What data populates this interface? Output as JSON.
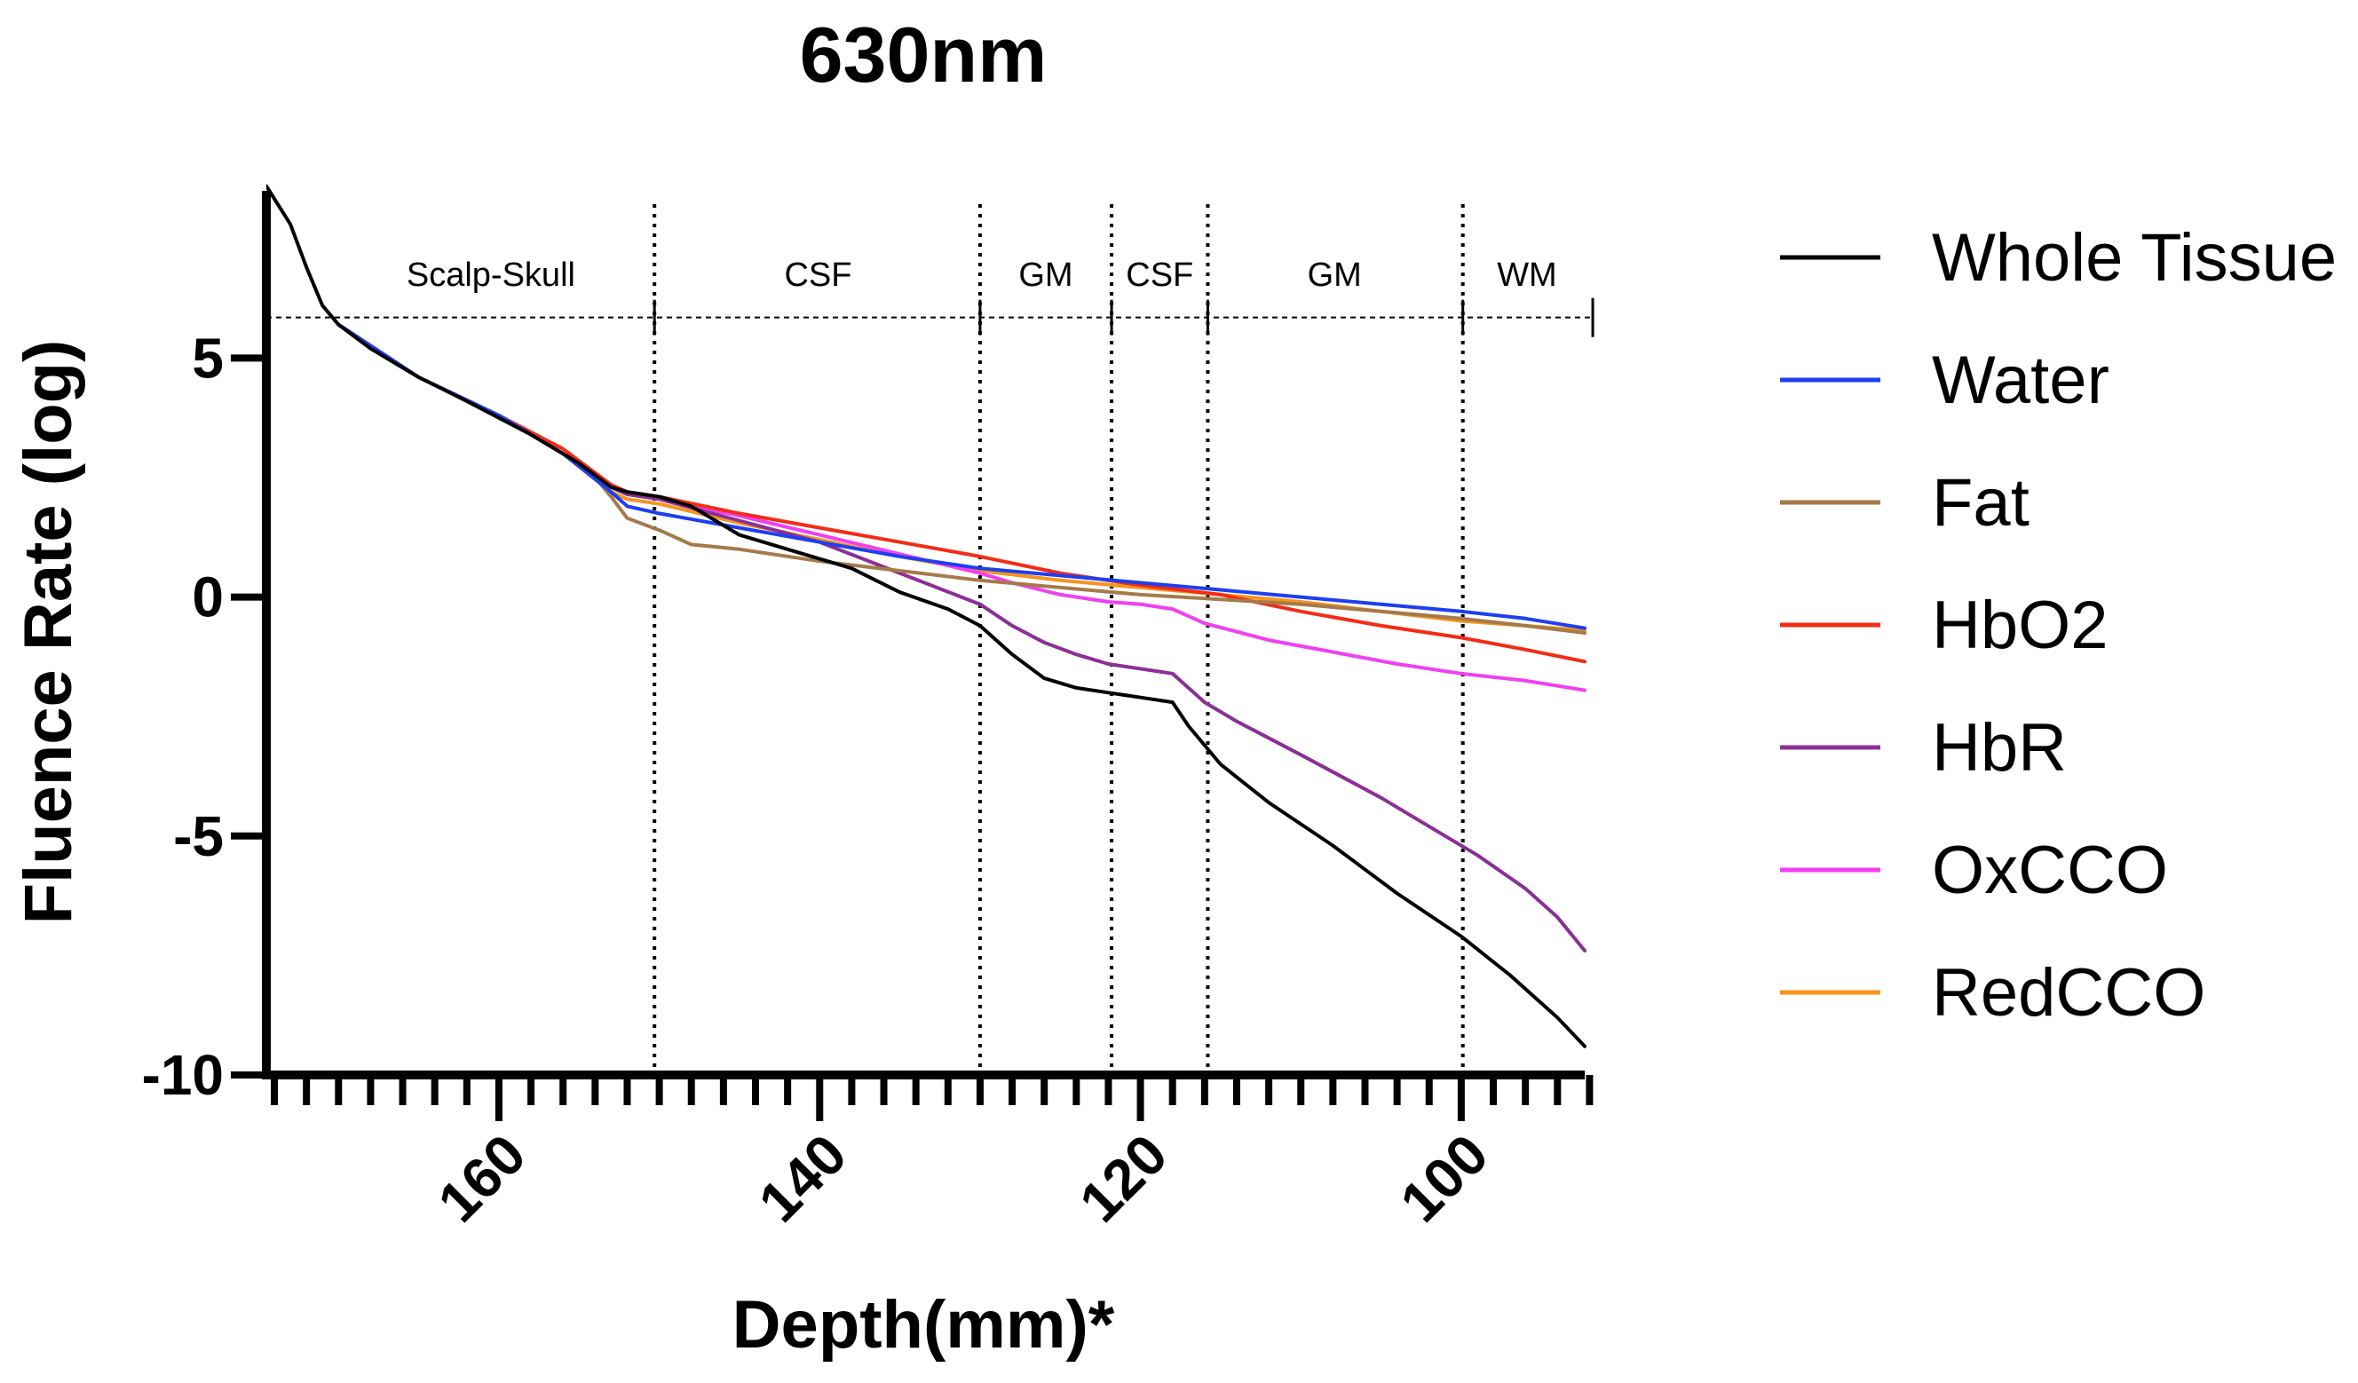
{
  "chart_data": {
    "type": "line",
    "title": "630nm",
    "xlabel": "Depth(mm)*",
    "ylabel": "Fluence Rate (log)",
    "xlim": [
      174.5,
      92.3
    ],
    "ylim": [
      -10,
      8.5
    ],
    "x_ticks": [
      160,
      140,
      120,
      100
    ],
    "y_ticks": [
      5,
      0,
      -5,
      -10
    ],
    "x_tick_labels": [
      "160",
      "140",
      "120",
      "100"
    ],
    "y_tick_labels": [
      "5",
      "0",
      "-5",
      "-10"
    ],
    "legend_position": "right",
    "regions": {
      "bracket_y": 5.85,
      "boundaries": [
        150.3,
        130.0,
        121.8,
        115.8,
        99.9
      ],
      "end_x": 91.8,
      "labels": [
        {
          "text": "Scalp-Skull",
          "x": 160.5
        },
        {
          "text": "CSF",
          "x": 140.1
        },
        {
          "text": "GM",
          "x": 125.9
        },
        {
          "text": "CSF",
          "x": 118.8
        },
        {
          "text": "GM",
          "x": 107.9
        },
        {
          "text": "WM",
          "x": 95.9
        }
      ]
    },
    "series": [
      {
        "name": "Whole Tissue",
        "color": "#000000",
        "x": [
          174.5,
          173,
          172,
          171,
          170,
          168,
          165,
          162,
          158,
          155,
          153,
          152,
          151,
          150,
          148,
          145,
          142,
          138,
          135,
          132,
          130,
          128,
          126,
          124,
          122,
          120,
          118,
          117,
          116,
          115,
          112,
          108,
          104,
          100,
          97,
          94,
          92.3
        ],
        "y": [
          8.6,
          7.8,
          6.9,
          6.1,
          5.7,
          5.2,
          4.6,
          4.1,
          3.4,
          2.8,
          2.3,
          2.2,
          2.15,
          2.1,
          1.9,
          1.3,
          1.0,
          0.6,
          0.1,
          -0.25,
          -0.6,
          -1.2,
          -1.7,
          -1.9,
          -2.0,
          -2.1,
          -2.2,
          -2.7,
          -3.1,
          -3.5,
          -4.3,
          -5.2,
          -6.2,
          -7.1,
          -7.9,
          -8.8,
          -9.4
        ]
      },
      {
        "name": "Water",
        "color": "#1d3ff0",
        "x": [
          170,
          165,
          160,
          156,
          153,
          152,
          150,
          145,
          140,
          135,
          130,
          125,
          120,
          115,
          110,
          105,
          100,
          96,
          92.3
        ],
        "y": [
          5.7,
          4.6,
          3.8,
          3.0,
          2.2,
          1.9,
          1.75,
          1.45,
          1.15,
          0.85,
          0.6,
          0.45,
          0.3,
          0.15,
          0.0,
          -0.15,
          -0.3,
          -0.45,
          -0.65
        ]
      },
      {
        "name": "Fat",
        "color": "#a57a4a",
        "x": [
          170,
          165,
          160,
          156,
          154,
          153,
          152,
          150,
          148,
          145,
          140,
          135,
          130,
          125,
          120,
          115,
          110,
          105,
          100,
          96,
          92.3
        ],
        "y": [
          5.7,
          4.6,
          3.8,
          3.0,
          2.5,
          2.1,
          1.65,
          1.4,
          1.1,
          1.0,
          0.75,
          0.55,
          0.35,
          0.2,
          0.05,
          -0.05,
          -0.15,
          -0.3,
          -0.45,
          -0.6,
          -0.75
        ]
      },
      {
        "name": "HbO2",
        "color": "#f42b16",
        "x": [
          170,
          165,
          160,
          156,
          153,
          152,
          150,
          145,
          140,
          135,
          130,
          125,
          120,
          115,
          110,
          105,
          100,
          96,
          92.3
        ],
        "y": [
          5.7,
          4.6,
          3.8,
          3.1,
          2.35,
          2.2,
          2.1,
          1.75,
          1.45,
          1.15,
          0.85,
          0.5,
          0.25,
          0.05,
          -0.3,
          -0.6,
          -0.85,
          -1.1,
          -1.35
        ]
      },
      {
        "name": "HbR",
        "color": "#8b2f96",
        "x": [
          170,
          165,
          160,
          156,
          153,
          152,
          150,
          145,
          140,
          135,
          130,
          128,
          126,
          124,
          122,
          120,
          118,
          116,
          114,
          110,
          105,
          101,
          99,
          96,
          94,
          92.3
        ],
        "y": [
          5.7,
          4.6,
          3.8,
          3.0,
          2.3,
          2.15,
          2.05,
          1.6,
          1.15,
          0.5,
          -0.15,
          -0.6,
          -0.95,
          -1.2,
          -1.4,
          -1.5,
          -1.6,
          -2.2,
          -2.6,
          -3.3,
          -4.2,
          -5.0,
          -5.4,
          -6.1,
          -6.7,
          -7.4
        ]
      },
      {
        "name": "OxCCO",
        "color": "#f23ff2",
        "x": [
          170,
          165,
          160,
          156,
          153,
          152,
          150,
          145,
          140,
          135,
          130,
          128,
          125,
          122,
          120,
          118,
          116,
          112,
          108,
          104,
          100,
          96,
          92.3
        ],
        "y": [
          5.7,
          4.6,
          3.8,
          3.0,
          2.3,
          2.15,
          2.05,
          1.7,
          1.3,
          0.9,
          0.5,
          0.3,
          0.05,
          -0.1,
          -0.15,
          -0.25,
          -0.55,
          -0.9,
          -1.15,
          -1.4,
          -1.6,
          -1.75,
          -1.95
        ]
      },
      {
        "name": "RedCCO",
        "color": "#f7941d",
        "x": [
          170,
          165,
          160,
          156,
          153,
          152,
          150,
          145,
          140,
          135,
          130,
          125,
          120,
          115,
          110,
          105,
          100,
          96,
          92.3
        ],
        "y": [
          5.7,
          4.6,
          3.8,
          3.0,
          2.2,
          2.05,
          1.95,
          1.55,
          1.2,
          0.85,
          0.55,
          0.35,
          0.2,
          0.05,
          -0.1,
          -0.3,
          -0.5,
          -0.6,
          -0.7
        ]
      }
    ]
  }
}
